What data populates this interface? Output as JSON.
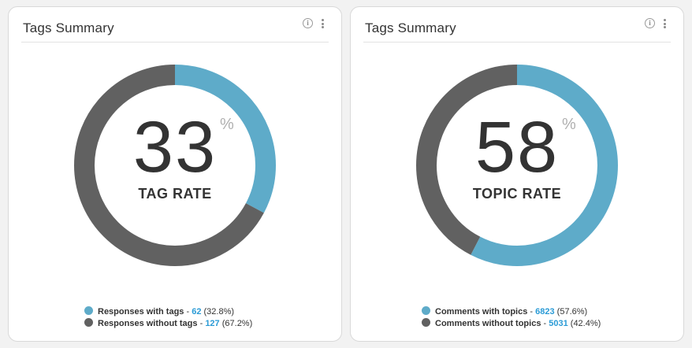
{
  "colors": {
    "accent": "#5eabc9",
    "dark": "#616161",
    "link": "#2b9bd6"
  },
  "cards": [
    {
      "title": "Tags Summary",
      "info_icon": "i",
      "rate_value": "33",
      "percent_sign": "%",
      "rate_label": "TAG RATE",
      "chart_data": {
        "type": "pie",
        "categories": [
          "Responses with tags",
          "Responses without tags"
        ],
        "values": [
          62,
          127
        ],
        "percentages": [
          32.8,
          67.2
        ],
        "colors": [
          "#5eabc9",
          "#616161"
        ]
      },
      "legend": [
        {
          "label": "Responses with tags",
          "sep": " - ",
          "count": "62",
          "pct": "(32.8%)"
        },
        {
          "label": "Responses without tags",
          "sep": " - ",
          "count": "127",
          "pct": "(67.2%)"
        }
      ]
    },
    {
      "title": "Tags Summary",
      "info_icon": "i",
      "rate_value": "58",
      "percent_sign": "%",
      "rate_label": "TOPIC RATE",
      "chart_data": {
        "type": "pie",
        "categories": [
          "Comments with topics",
          "Comments without topics"
        ],
        "values": [
          6823,
          5031
        ],
        "percentages": [
          57.6,
          42.4
        ],
        "colors": [
          "#5eabc9",
          "#616161"
        ]
      },
      "legend": [
        {
          "label": "Comments with topics",
          "sep": " - ",
          "count": "6823",
          "pct": "(57.6%)"
        },
        {
          "label": "Comments without topics",
          "sep": " - ",
          "count": "5031",
          "pct": "(42.4%)"
        }
      ]
    }
  ]
}
